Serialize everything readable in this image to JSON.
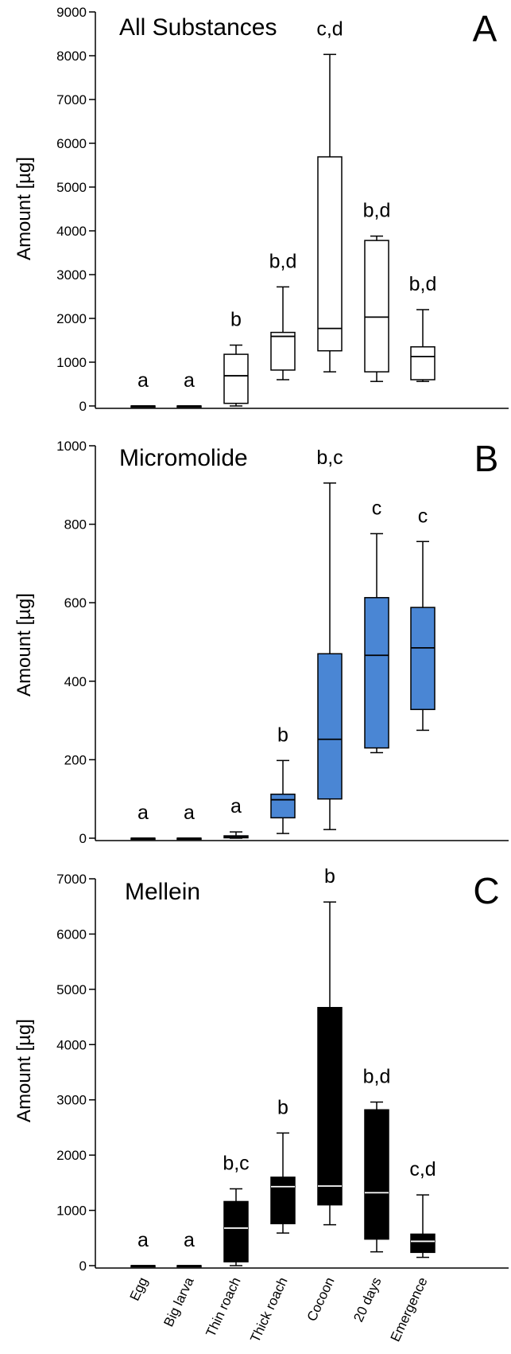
{
  "chart_data": [
    {
      "type": "box",
      "panel": "A",
      "title": "All Substances",
      "ylabel": "Amount [µg]",
      "ylim": [
        0,
        9000
      ],
      "yticks": [
        0,
        1000,
        2000,
        3000,
        4000,
        5000,
        6000,
        7000,
        8000,
        9000
      ],
      "categories": [
        "Egg",
        "Big larva",
        "Thin roach",
        "Thick roach",
        "Cocoon",
        "20 days",
        "Emergence"
      ],
      "fill_color": "#ffffff",
      "median_color": "#000000",
      "boxes": [
        {
          "min": 0,
          "q1": 0,
          "median": 0,
          "q3": 0,
          "max": 0
        },
        {
          "min": 0,
          "q1": 0,
          "median": 0,
          "q3": 0,
          "max": 0
        },
        {
          "min": 0,
          "q1": 60,
          "median": 690,
          "q3": 1180,
          "max": 1390
        },
        {
          "min": 600,
          "q1": 820,
          "median": 1590,
          "q3": 1680,
          "max": 2720
        },
        {
          "min": 780,
          "q1": 1260,
          "median": 1770,
          "q3": 5690,
          "max": 8030
        },
        {
          "min": 560,
          "q1": 780,
          "median": 2030,
          "q3": 3780,
          "max": 3880
        },
        {
          "min": 560,
          "q1": 600,
          "median": 1130,
          "q3": 1350,
          "max": 2200
        }
      ],
      "significance_labels": [
        "a",
        "a",
        "b",
        "b,d",
        "c,d",
        "b,d",
        "b,d"
      ]
    },
    {
      "type": "box",
      "panel": "B",
      "title": "Micromolide",
      "ylabel": "Amount [µg]",
      "ylim": [
        0,
        1000
      ],
      "yticks": [
        0,
        200,
        400,
        600,
        800,
        1000
      ],
      "categories": [
        "Egg",
        "Big larva",
        "Thin roach",
        "Thick roach",
        "Cocoon",
        "20 days",
        "Emergence"
      ],
      "fill_color": "#4a86d4",
      "median_color": "#000000",
      "boxes": [
        {
          "min": 0,
          "q1": 0,
          "median": 0,
          "q3": 0,
          "max": 0
        },
        {
          "min": 0,
          "q1": 0,
          "median": 0,
          "q3": 0,
          "max": 0
        },
        {
          "min": 0,
          "q1": 1,
          "median": 3,
          "q3": 6,
          "max": 16
        },
        {
          "min": 12,
          "q1": 52,
          "median": 98,
          "q3": 112,
          "max": 198
        },
        {
          "min": 22,
          "q1": 100,
          "median": 252,
          "q3": 470,
          "max": 905
        },
        {
          "min": 218,
          "q1": 230,
          "median": 466,
          "q3": 613,
          "max": 776
        },
        {
          "min": 275,
          "q1": 328,
          "median": 485,
          "q3": 588,
          "max": 756
        }
      ],
      "significance_labels": [
        "a",
        "a",
        "a",
        "b",
        "b,c",
        "c",
        "c"
      ]
    },
    {
      "type": "box",
      "panel": "C",
      "title": "Mellein",
      "ylabel": "Amount [µg]",
      "ylim": [
        0,
        7000
      ],
      "yticks": [
        0,
        1000,
        2000,
        3000,
        4000,
        5000,
        6000,
        7000
      ],
      "categories": [
        "Egg",
        "Big larva",
        "Thin roach",
        "Thick roach",
        "Cocoon",
        "20 days",
        "Emergence"
      ],
      "fill_color": "#000000",
      "median_color": "#ffffff",
      "boxes": [
        {
          "min": 0,
          "q1": 0,
          "median": 0,
          "q3": 0,
          "max": 0
        },
        {
          "min": 0,
          "q1": 0,
          "median": 0,
          "q3": 0,
          "max": 0
        },
        {
          "min": 0,
          "q1": 70,
          "median": 680,
          "q3": 1160,
          "max": 1390
        },
        {
          "min": 590,
          "q1": 760,
          "median": 1430,
          "q3": 1600,
          "max": 2400
        },
        {
          "min": 740,
          "q1": 1100,
          "median": 1440,
          "q3": 4670,
          "max": 6580
        },
        {
          "min": 250,
          "q1": 480,
          "median": 1320,
          "q3": 2820,
          "max": 2960
        },
        {
          "min": 150,
          "q1": 240,
          "median": 440,
          "q3": 570,
          "max": 1280
        }
      ],
      "significance_labels": [
        "a",
        "a",
        "b,c",
        "b",
        "b",
        "b,d",
        "c,d"
      ]
    }
  ]
}
